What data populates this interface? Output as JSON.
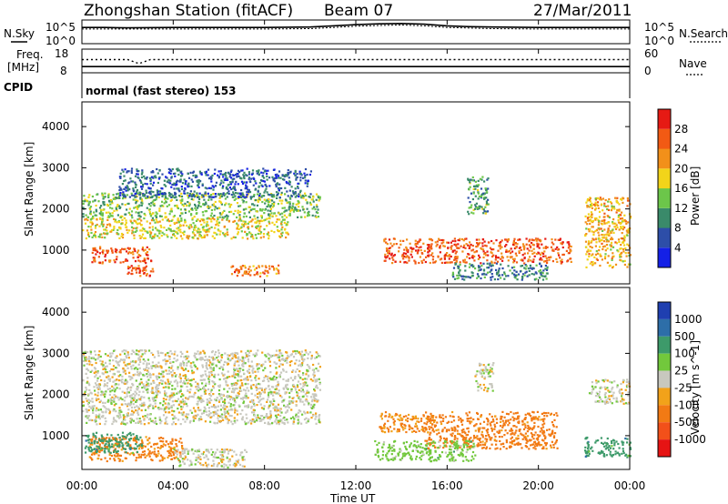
{
  "header": {
    "station": "Zhongshan Station (fitACF)",
    "beam": "Beam 07",
    "date": "27/Mar/2011"
  },
  "aux_panels": {
    "nsky_label": "N.Sky",
    "nsearch_label": "N.Search",
    "nsky_ticks": [
      "10^5",
      "10^0"
    ],
    "nsearch_ticks": [
      "10^5",
      "10^0"
    ],
    "freq_label_top": "Freq.",
    "freq_label_bottom": "[MHz]",
    "freq_ticks": [
      "18",
      "8"
    ],
    "nave_label": "Nave",
    "nave_ticks": [
      "60",
      "0"
    ],
    "cpid_label": "CPID",
    "cpid_text": "normal (fast stereo) 153"
  },
  "axes": {
    "x_tick_labels": [
      "00:00",
      "04:00",
      "08:00",
      "12:00",
      "16:00",
      "20:00",
      "00:00"
    ],
    "x_label": "Time UT",
    "y_label": "Slant Range [km]",
    "y_tick_labels": [
      "1000",
      "2000",
      "3000",
      "4000"
    ]
  },
  "colorbars": {
    "power": {
      "label": "Power [dB]",
      "ticks": [
        "4",
        "8",
        "12",
        "16",
        "20",
        "24",
        "28"
      ],
      "colors": [
        "#1420e6",
        "#2d4ea8",
        "#3a8a6a",
        "#6cc64a",
        "#f2d41a",
        "#f2901a",
        "#f25a14",
        "#e61a14"
      ]
    },
    "velocity": {
      "label": "Velocity [m s^-1]",
      "ticks": [
        "1000",
        "500",
        "100",
        "25",
        "-25",
        "-100",
        "-500",
        "-1000"
      ],
      "colors": [
        "#1f3fb0",
        "#2d6ea8",
        "#3d9a6a",
        "#72c83c",
        "#c8c8be",
        "#f2a21a",
        "#f27a14",
        "#f2501a",
        "#e61414"
      ]
    }
  },
  "chart_data": [
    {
      "type": "line",
      "title": "Zhongshan Station (fitACF)",
      "xlabel": "",
      "ylabel": "N.Sky",
      "xlim": [
        0,
        24
      ],
      "ylim": [
        0,
        5
      ],
      "series": [
        {
          "name": "N.Sky",
          "x": [
            0,
            1,
            2,
            4,
            6,
            8,
            10,
            11,
            12,
            13,
            14,
            15,
            16,
            17,
            18,
            20,
            22,
            24
          ],
          "values": [
            3.6,
            3.6,
            3.5,
            3.6,
            3.6,
            3.6,
            3.7,
            4.0,
            4.3,
            4.5,
            4.6,
            4.4,
            4.0,
            3.8,
            3.7,
            3.6,
            3.6,
            3.6
          ]
        },
        {
          "name": "N.Search",
          "x": [
            0,
            4,
            8,
            10,
            11,
            12,
            13,
            14,
            15,
            16,
            18,
            20,
            24
          ],
          "values": [
            3.2,
            3.2,
            3.2,
            3.3,
            3.6,
            3.9,
            4.1,
            4.2,
            4.0,
            3.6,
            3.3,
            3.2,
            3.2
          ]
        }
      ]
    },
    {
      "type": "line",
      "xlabel": "",
      "ylabel": "Freq. [MHz]",
      "xlim": [
        0,
        24
      ],
      "ylim": [
        8,
        18
      ],
      "series": [
        {
          "name": "Freq.",
          "x": [
            0,
            24
          ],
          "values": [
            10.2,
            10.2
          ]
        },
        {
          "name": "Nave",
          "x": [
            0,
            2,
            2.5,
            3,
            4,
            8,
            12,
            16,
            20,
            24
          ],
          "values": [
            34,
            34,
            22,
            34,
            34,
            34,
            34,
            34,
            34,
            34
          ]
        }
      ]
    },
    {
      "type": "heatmap",
      "xlabel": "",
      "ylabel": "Slant Range [km]",
      "xlim": [
        0,
        24
      ],
      "ylim": [
        180,
        4600
      ],
      "colorbar": "Power [dB]",
      "blobs": [
        {
          "t": [
            0,
            10.4
          ],
          "r": [
            1800,
            2400
          ],
          "v": 14
        },
        {
          "t": [
            0,
            9.0
          ],
          "r": [
            1300,
            1800
          ],
          "v": 18
        },
        {
          "t": [
            0.4,
            3.0
          ],
          "r": [
            700,
            1100
          ],
          "v": 26
        },
        {
          "t": [
            1.8,
            3.2
          ],
          "r": [
            380,
            650
          ],
          "v": 26
        },
        {
          "t": [
            6.5,
            8.6
          ],
          "r": [
            380,
            650
          ],
          "v": 24
        },
        {
          "t": [
            1.6,
            10.0
          ],
          "r": [
            2300,
            3000
          ],
          "v": 7
        },
        {
          "t": [
            13.2,
            21.4
          ],
          "r": [
            700,
            1300
          ],
          "v": 26
        },
        {
          "t": [
            16.2,
            20.4
          ],
          "r": [
            300,
            700
          ],
          "v": 10
        },
        {
          "t": [
            16.8,
            17.8
          ],
          "r": [
            1900,
            2800
          ],
          "v": 12
        },
        {
          "t": [
            22.0,
            24.0
          ],
          "r": [
            600,
            2300
          ],
          "v": 20
        }
      ]
    },
    {
      "type": "heatmap",
      "xlabel": "Time UT",
      "ylabel": "Slant Range [km]",
      "xlim": [
        0,
        24
      ],
      "ylim": [
        180,
        4600
      ],
      "colorbar": "Velocity [m s^-1]",
      "blobs": [
        {
          "t": [
            0,
            10.4
          ],
          "r": [
            1300,
            3100
          ],
          "v": 0
        },
        {
          "t": [
            0.3,
            4.4
          ],
          "r": [
            400,
            1000
          ],
          "v": -150
        },
        {
          "t": [
            0.1,
            2.6
          ],
          "r": [
            600,
            1100
          ],
          "v": 300
        },
        {
          "t": [
            4.0,
            7.2
          ],
          "r": [
            250,
            700
          ],
          "v": 0
        },
        {
          "t": [
            13.0,
            15.4
          ],
          "r": [
            1100,
            1600
          ],
          "v": -120
        },
        {
          "t": [
            15.0,
            20.8
          ],
          "r": [
            700,
            1600
          ],
          "v": -250
        },
        {
          "t": [
            12.8,
            17.2
          ],
          "r": [
            400,
            900
          ],
          "v": 60
        },
        {
          "t": [
            17.2,
            18.0
          ],
          "r": [
            2100,
            2800
          ],
          "v": 0
        },
        {
          "t": [
            22.2,
            24.0
          ],
          "r": [
            1800,
            2400
          ],
          "v": 0
        },
        {
          "t": [
            22.0,
            24.0
          ],
          "r": [
            500,
            1000
          ],
          "v": 300
        }
      ]
    }
  ]
}
